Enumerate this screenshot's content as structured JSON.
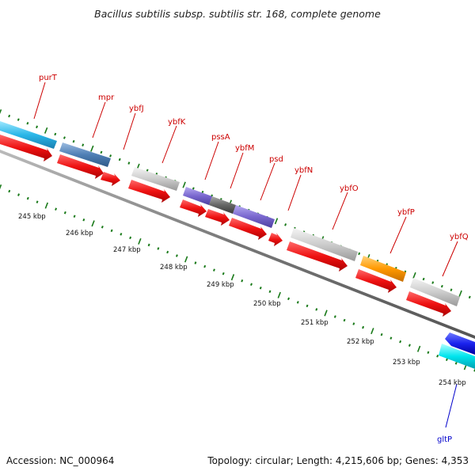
{
  "title": "Bacillus subtilis subsp. subtilis str. 168, complete genome",
  "footer": {
    "accession": "Accession: NC_000964",
    "summary": "Topology: circular; Length: 4,215,606 bp; Genes: 4,353"
  },
  "colors": {
    "cds_red": "#ee1111",
    "backbone": "#777777",
    "tick_green": "#1a7a1a",
    "label_red": "#cc0000",
    "label_blue": "#0000cc"
  },
  "scale_labels": [
    "245 kbp",
    "246 kbp",
    "247 kbp",
    "248 kbp",
    "249 kbp",
    "250 kbp",
    "251 kbp",
    "252 kbp",
    "253 kbp",
    "254 kbp"
  ],
  "genes": [
    {
      "name": "purT",
      "color": "#29b6e8"
    },
    {
      "name": "mpr",
      "color": "#4f7fb5"
    },
    {
      "name": "ybfJ",
      "color": "#cccccc"
    },
    {
      "name": "ybfK",
      "color": "#cccccc"
    },
    {
      "name": "pssA",
      "color": "#7a68cf"
    },
    {
      "name": "ybfM",
      "color": "#666666"
    },
    {
      "name": "psd",
      "color": "#7a68cf"
    },
    {
      "name": "ybfN",
      "color": "#cccccc"
    },
    {
      "name": "ybfO",
      "color": "#cccccc"
    },
    {
      "name": "ybfP",
      "color": "#ff9900"
    },
    {
      "name": "ybfQ",
      "color": "#cccccc"
    },
    {
      "name": "gltP",
      "color": "#00e5ee"
    }
  ]
}
